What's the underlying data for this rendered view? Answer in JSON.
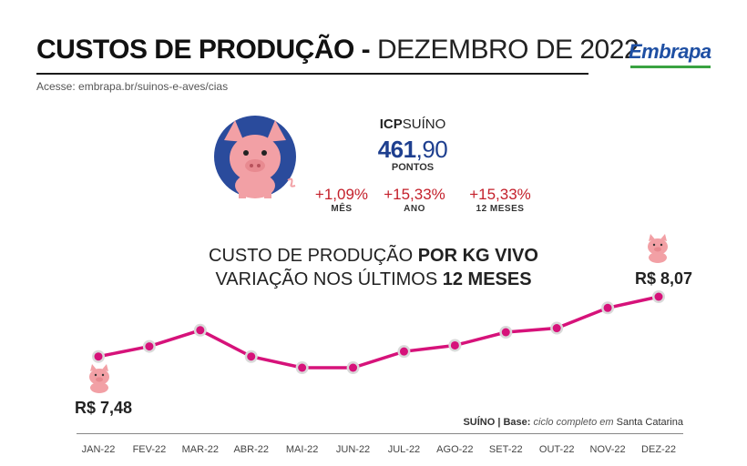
{
  "header": {
    "title_bold": "CUSTOS DE PRODUÇÃO -",
    "title_rest": " DEZEMBRO DE 2022",
    "url": "Acesse: embrapa.br/suinos-e-aves/cias",
    "logo": "Embrapa"
  },
  "icp": {
    "label_bold": "ICP",
    "label_rest": "SUÍNO",
    "value_int": "461",
    "value_dec": ",90",
    "unit": "PONTOS",
    "stats": [
      {
        "value": "+1,09%",
        "label": "MÊS"
      },
      {
        "value": "+15,33%",
        "label": "ANO"
      },
      {
        "value": "+15,33%",
        "label": "12 MESES"
      }
    ]
  },
  "chart_title": {
    "line1_a": "CUSTO DE PRODUÇÃO ",
    "line1_b": "POR KG VIVO",
    "line2_a": "VARIAÇÃO NOS ÚLTIMOS ",
    "line2_b": "12 MESES"
  },
  "note": {
    "bold": "SUÍNO | Base:",
    "italic": " ciclo completo em ",
    "rest": "Santa Catarina"
  },
  "colors": {
    "line": "#d6127a",
    "marker": "#d9d9d9",
    "pig": "#f2a0a5",
    "circle": "#2a4b9c",
    "accent_red": "#c4202b"
  },
  "chart_data": {
    "type": "line",
    "categories": [
      "JAN-22",
      "FEV-22",
      "MAR-22",
      "ABR-22",
      "MAI-22",
      "JUN-22",
      "JUL-22",
      "AGO-22",
      "SET-22",
      "OUT-22",
      "NOV-22",
      "DEZ-22"
    ],
    "series": [
      {
        "values": [
          7.48,
          7.58,
          7.74,
          7.48,
          7.37,
          7.37,
          7.53,
          7.59,
          7.72,
          7.76,
          7.96,
          8.07
        ]
      }
    ],
    "annotations": [
      {
        "index": 0,
        "text": "R$ 7,48"
      },
      {
        "index": 11,
        "text": "R$ 8,07"
      }
    ],
    "ylim": [
      7.3,
      8.1
    ],
    "grid": false,
    "legend": "none"
  }
}
